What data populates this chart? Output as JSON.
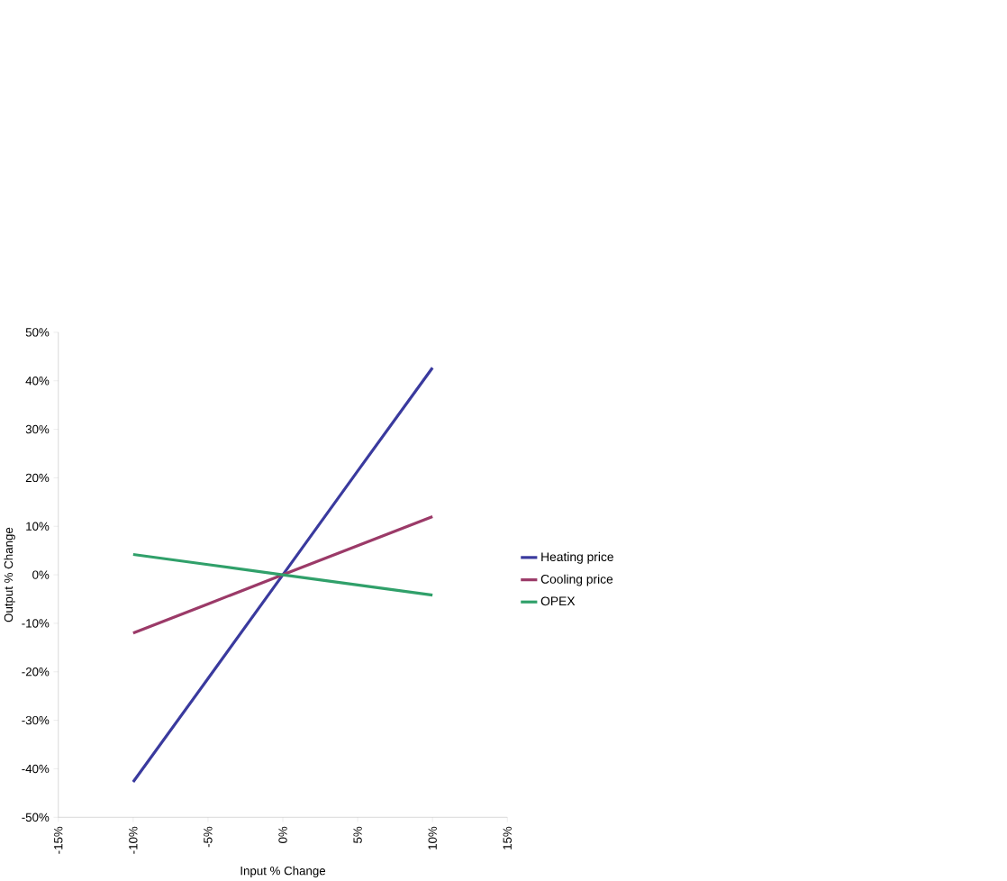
{
  "chart_data": {
    "type": "line",
    "xlabel": "Input % Change",
    "ylabel": "Output % Change",
    "x": [
      -10,
      -5,
      0,
      5,
      10
    ],
    "series": [
      {
        "name": "Heating price",
        "color": "#3a3a9e",
        "values": [
          -42.7,
          -21.4,
          0,
          21.4,
          42.7
        ]
      },
      {
        "name": "Cooling price",
        "color": "#9b3a68",
        "values": [
          -12,
          -6,
          0,
          6,
          12
        ]
      },
      {
        "name": "OPEX",
        "color": "#30a06a",
        "values": [
          4.2,
          2.1,
          0,
          -2.1,
          -4.2
        ]
      }
    ],
    "xlim": [
      -15,
      15
    ],
    "ylim": [
      -50,
      50
    ],
    "xticks": [
      {
        "value": -15,
        "label": "-15%"
      },
      {
        "value": -10,
        "label": "-10%"
      },
      {
        "value": -5,
        "label": "-5%"
      },
      {
        "value": 0,
        "label": "0%"
      },
      {
        "value": 5,
        "label": "5%"
      },
      {
        "value": 10,
        "label": "10%"
      },
      {
        "value": 15,
        "label": "15%"
      }
    ],
    "yticks": [
      {
        "value": -50,
        "label": "-50%"
      },
      {
        "value": -40,
        "label": "-40%"
      },
      {
        "value": -30,
        "label": "-30%"
      },
      {
        "value": -20,
        "label": "-20%"
      },
      {
        "value": -10,
        "label": "-10%"
      },
      {
        "value": 0,
        "label": "0%"
      },
      {
        "value": 10,
        "label": "10%"
      },
      {
        "value": 20,
        "label": "20%"
      },
      {
        "value": 30,
        "label": "30%"
      },
      {
        "value": 40,
        "label": "40%"
      },
      {
        "value": 50,
        "label": "50%"
      }
    ],
    "grid": false,
    "legend": "right",
    "marker": "none",
    "line_style": "solid"
  }
}
